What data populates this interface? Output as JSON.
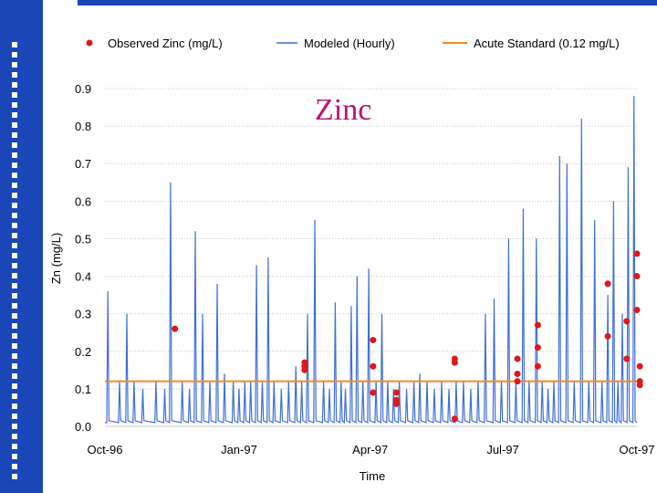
{
  "colors": {
    "sidebar": "#1a46b8",
    "modeled": "#3f6fd8",
    "observed": "#e01818",
    "standard": "#f08a24",
    "title": "#b8127a"
  },
  "chart_data": {
    "type": "line",
    "title": "Zinc",
    "xlabel": "Time",
    "ylabel": "Zn (mg/L)",
    "ylim": [
      0,
      0.9
    ],
    "yticks": [
      0.0,
      0.1,
      0.2,
      0.3,
      0.4,
      0.5,
      0.6,
      0.7,
      0.8,
      0.9
    ],
    "ytick_labels": [
      "0.0",
      "0.1",
      "0.2",
      "0.3",
      "0.4",
      "0.5",
      "0.6",
      "0.7",
      "0.8",
      "0.9"
    ],
    "xlim": [
      0,
      365
    ],
    "xticks": [
      0,
      92,
      182,
      273,
      365
    ],
    "xtick_labels": [
      "Oct-96",
      "Jan-97",
      "Apr-97",
      "Jul-97",
      "Oct-97"
    ],
    "legend": {
      "position": "top",
      "entries": [
        "Observed Zinc (mg/L)",
        "Modeled (Hourly)",
        "Acute Standard (0.12 mg/L)"
      ]
    },
    "series": [
      {
        "name": "Modeled (Hourly)",
        "kind": "line",
        "baseline": 0.01,
        "spikes": [
          {
            "t": 2,
            "v": 0.36
          },
          {
            "t": 10,
            "v": 0.12
          },
          {
            "t": 15,
            "v": 0.3
          },
          {
            "t": 20,
            "v": 0.12
          },
          {
            "t": 26,
            "v": 0.1
          },
          {
            "t": 35,
            "v": 0.12
          },
          {
            "t": 41,
            "v": 0.1
          },
          {
            "t": 45,
            "v": 0.65
          },
          {
            "t": 53,
            "v": 0.12
          },
          {
            "t": 58,
            "v": 0.1
          },
          {
            "t": 62,
            "v": 0.52
          },
          {
            "t": 67,
            "v": 0.3
          },
          {
            "t": 72,
            "v": 0.12
          },
          {
            "t": 77,
            "v": 0.38
          },
          {
            "t": 82,
            "v": 0.14
          },
          {
            "t": 88,
            "v": 0.12
          },
          {
            "t": 92,
            "v": 0.1
          },
          {
            "t": 96,
            "v": 0.12
          },
          {
            "t": 100,
            "v": 0.12
          },
          {
            "t": 104,
            "v": 0.43
          },
          {
            "t": 108,
            "v": 0.12
          },
          {
            "t": 112,
            "v": 0.45
          },
          {
            "t": 116,
            "v": 0.12
          },
          {
            "t": 121,
            "v": 0.1
          },
          {
            "t": 126,
            "v": 0.12
          },
          {
            "t": 131,
            "v": 0.16
          },
          {
            "t": 135,
            "v": 0.12
          },
          {
            "t": 139,
            "v": 0.3
          },
          {
            "t": 144,
            "v": 0.55
          },
          {
            "t": 150,
            "v": 0.12
          },
          {
            "t": 154,
            "v": 0.1
          },
          {
            "t": 158,
            "v": 0.33
          },
          {
            "t": 162,
            "v": 0.12
          },
          {
            "t": 165,
            "v": 0.1
          },
          {
            "t": 169,
            "v": 0.32
          },
          {
            "t": 173,
            "v": 0.4
          },
          {
            "t": 177,
            "v": 0.12
          },
          {
            "t": 181,
            "v": 0.42
          },
          {
            "t": 186,
            "v": 0.12
          },
          {
            "t": 190,
            "v": 0.3
          },
          {
            "t": 194,
            "v": 0.12
          },
          {
            "t": 198,
            "v": 0.1
          },
          {
            "t": 202,
            "v": 0.12
          },
          {
            "t": 207,
            "v": 0.1
          },
          {
            "t": 212,
            "v": 0.12
          },
          {
            "t": 216,
            "v": 0.14
          },
          {
            "t": 221,
            "v": 0.12
          },
          {
            "t": 226,
            "v": 0.1
          },
          {
            "t": 231,
            "v": 0.12
          },
          {
            "t": 236,
            "v": 0.1
          },
          {
            "t": 241,
            "v": 0.12
          },
          {
            "t": 246,
            "v": 0.12
          },
          {
            "t": 251,
            "v": 0.1
          },
          {
            "t": 256,
            "v": 0.12
          },
          {
            "t": 261,
            "v": 0.3
          },
          {
            "t": 267,
            "v": 0.34
          },
          {
            "t": 272,
            "v": 0.12
          },
          {
            "t": 277,
            "v": 0.5
          },
          {
            "t": 282,
            "v": 0.12
          },
          {
            "t": 287,
            "v": 0.58
          },
          {
            "t": 291,
            "v": 0.12
          },
          {
            "t": 296,
            "v": 0.5
          },
          {
            "t": 300,
            "v": 0.12
          },
          {
            "t": 304,
            "v": 0.1
          },
          {
            "t": 308,
            "v": 0.12
          },
          {
            "t": 312,
            "v": 0.72
          },
          {
            "t": 317,
            "v": 0.7
          },
          {
            "t": 322,
            "v": 0.12
          },
          {
            "t": 327,
            "v": 0.82
          },
          {
            "t": 332,
            "v": 0.12
          },
          {
            "t": 336,
            "v": 0.55
          },
          {
            "t": 341,
            "v": 0.12
          },
          {
            "t": 345,
            "v": 0.35
          },
          {
            "t": 349,
            "v": 0.6
          },
          {
            "t": 352,
            "v": 0.12
          },
          {
            "t": 355,
            "v": 0.3
          },
          {
            "t": 359,
            "v": 0.69
          },
          {
            "t": 363,
            "v": 0.88
          }
        ]
      },
      {
        "name": "Observed Zinc (mg/L)",
        "kind": "scatter",
        "points": [
          {
            "t": 48,
            "v": 0.26
          },
          {
            "t": 137,
            "v": 0.17
          },
          {
            "t": 137,
            "v": 0.16
          },
          {
            "t": 137,
            "v": 0.15
          },
          {
            "t": 184,
            "v": 0.23
          },
          {
            "t": 184,
            "v": 0.16
          },
          {
            "t": 184,
            "v": 0.09
          },
          {
            "t": 200,
            "v": 0.09
          },
          {
            "t": 200,
            "v": 0.07
          },
          {
            "t": 200,
            "v": 0.06
          },
          {
            "t": 240,
            "v": 0.18
          },
          {
            "t": 240,
            "v": 0.17
          },
          {
            "t": 240,
            "v": 0.02
          },
          {
            "t": 283,
            "v": 0.18
          },
          {
            "t": 283,
            "v": 0.14
          },
          {
            "t": 283,
            "v": 0.12
          },
          {
            "t": 297,
            "v": 0.27
          },
          {
            "t": 297,
            "v": 0.21
          },
          {
            "t": 297,
            "v": 0.16
          },
          {
            "t": 345,
            "v": 0.38
          },
          {
            "t": 345,
            "v": 0.24
          },
          {
            "t": 358,
            "v": 0.28
          },
          {
            "t": 358,
            "v": 0.18
          },
          {
            "t": 365,
            "v": 0.46
          },
          {
            "t": 365,
            "v": 0.4
          },
          {
            "t": 365,
            "v": 0.31
          },
          {
            "t": 367,
            "v": 0.16
          },
          {
            "t": 367,
            "v": 0.12
          },
          {
            "t": 367,
            "v": 0.11
          }
        ]
      },
      {
        "name": "Acute Standard (0.12 mg/L)",
        "kind": "hline",
        "value": 0.12
      }
    ]
  }
}
